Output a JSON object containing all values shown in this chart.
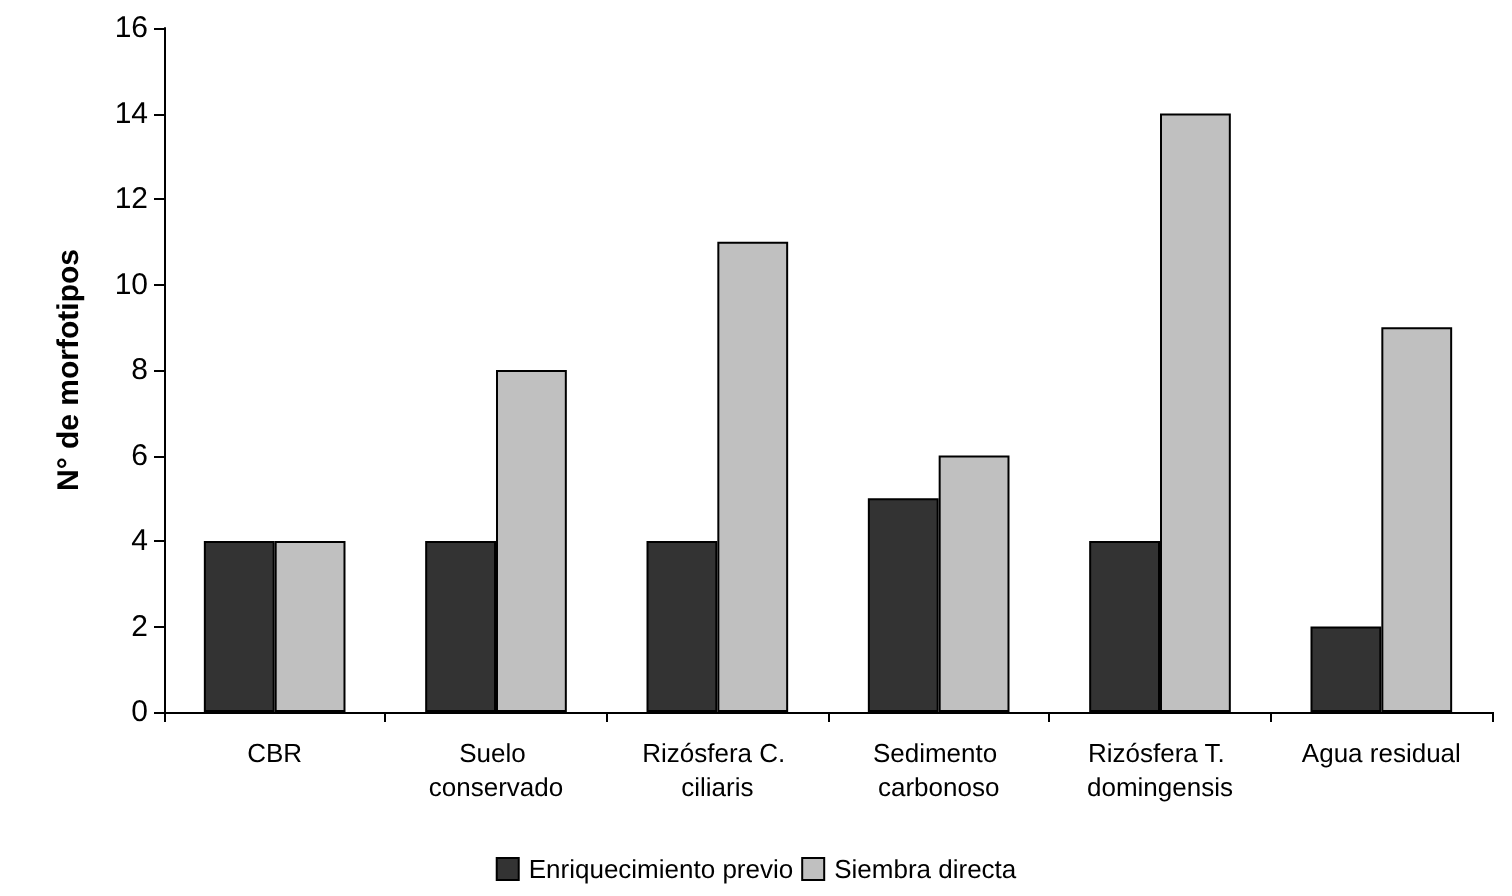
{
  "chart_data": {
    "type": "bar",
    "ylabel": "N° de morfotipos",
    "categories": [
      "CBR",
      "Suelo conservado",
      "Rizósfera C. ciliaris",
      "Sedimento carbonoso",
      "Rizósfera T. domingensis",
      "Agua residual"
    ],
    "series": [
      {
        "name": "Enriquecimiento previo",
        "color": "#333333",
        "values": [
          4,
          4,
          4,
          5,
          4,
          2
        ]
      },
      {
        "name": "Siembra directa",
        "color": "#c0c0c0",
        "values": [
          4,
          8,
          11,
          6,
          14,
          9
        ]
      }
    ],
    "ylim": [
      0,
      16
    ],
    "yticks": [
      0,
      2,
      4,
      6,
      8,
      10,
      12,
      14,
      16
    ],
    "grid": false,
    "legend": "bottom"
  }
}
